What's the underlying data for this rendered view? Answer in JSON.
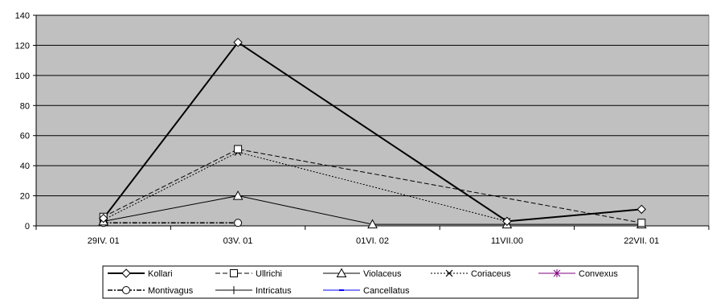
{
  "chart_data": {
    "type": "line",
    "categories": [
      "29IV. 01",
      "03V. 01",
      "01VI. 02",
      "11VII.00",
      "22VII. 01"
    ],
    "ylim": [
      0,
      140
    ],
    "yticks": [
      0,
      20,
      40,
      60,
      80,
      100,
      120,
      140
    ],
    "grid": "horizontal",
    "plot_background": "#c0c0c0",
    "legend_position": "bottom",
    "series": [
      {
        "name": "Kollari",
        "values": [
          5,
          122,
          null,
          3,
          11
        ],
        "color": "#000000",
        "dash": "solid",
        "width": 2,
        "marker": "diamond"
      },
      {
        "name": "Ullrichi",
        "values": [
          6,
          51,
          null,
          null,
          2
        ],
        "color": "#000000",
        "dash": "dashed",
        "width": 1,
        "marker": "square"
      },
      {
        "name": "Violaceus",
        "values": [
          3,
          20,
          1,
          1,
          1
        ],
        "color": "#000000",
        "dash": "solid",
        "width": 1,
        "marker": "triangle"
      },
      {
        "name": "Coriaceus",
        "values": [
          4,
          49,
          null,
          3,
          null
        ],
        "color": "#000000",
        "dash": "dotted",
        "width": 1,
        "marker": "x"
      },
      {
        "name": "Convexus",
        "values": [
          null,
          null,
          null,
          null,
          null
        ],
        "color": "#800080",
        "dash": "solid",
        "width": 1,
        "marker": "star"
      },
      {
        "name": "Montivagus",
        "values": [
          2,
          2,
          null,
          null,
          null
        ],
        "color": "#000000",
        "dash": "dashdot",
        "width": 1.5,
        "marker": "circle"
      },
      {
        "name": "Intricatus",
        "values": [
          null,
          null,
          null,
          null,
          null
        ],
        "color": "#000000",
        "dash": "solid",
        "width": 1,
        "marker": "plus"
      },
      {
        "name": "Cancellatus",
        "values": [
          null,
          null,
          null,
          null,
          2
        ],
        "color": "#0000ff",
        "dash": "solid",
        "width": 1,
        "marker": "dash"
      }
    ]
  }
}
